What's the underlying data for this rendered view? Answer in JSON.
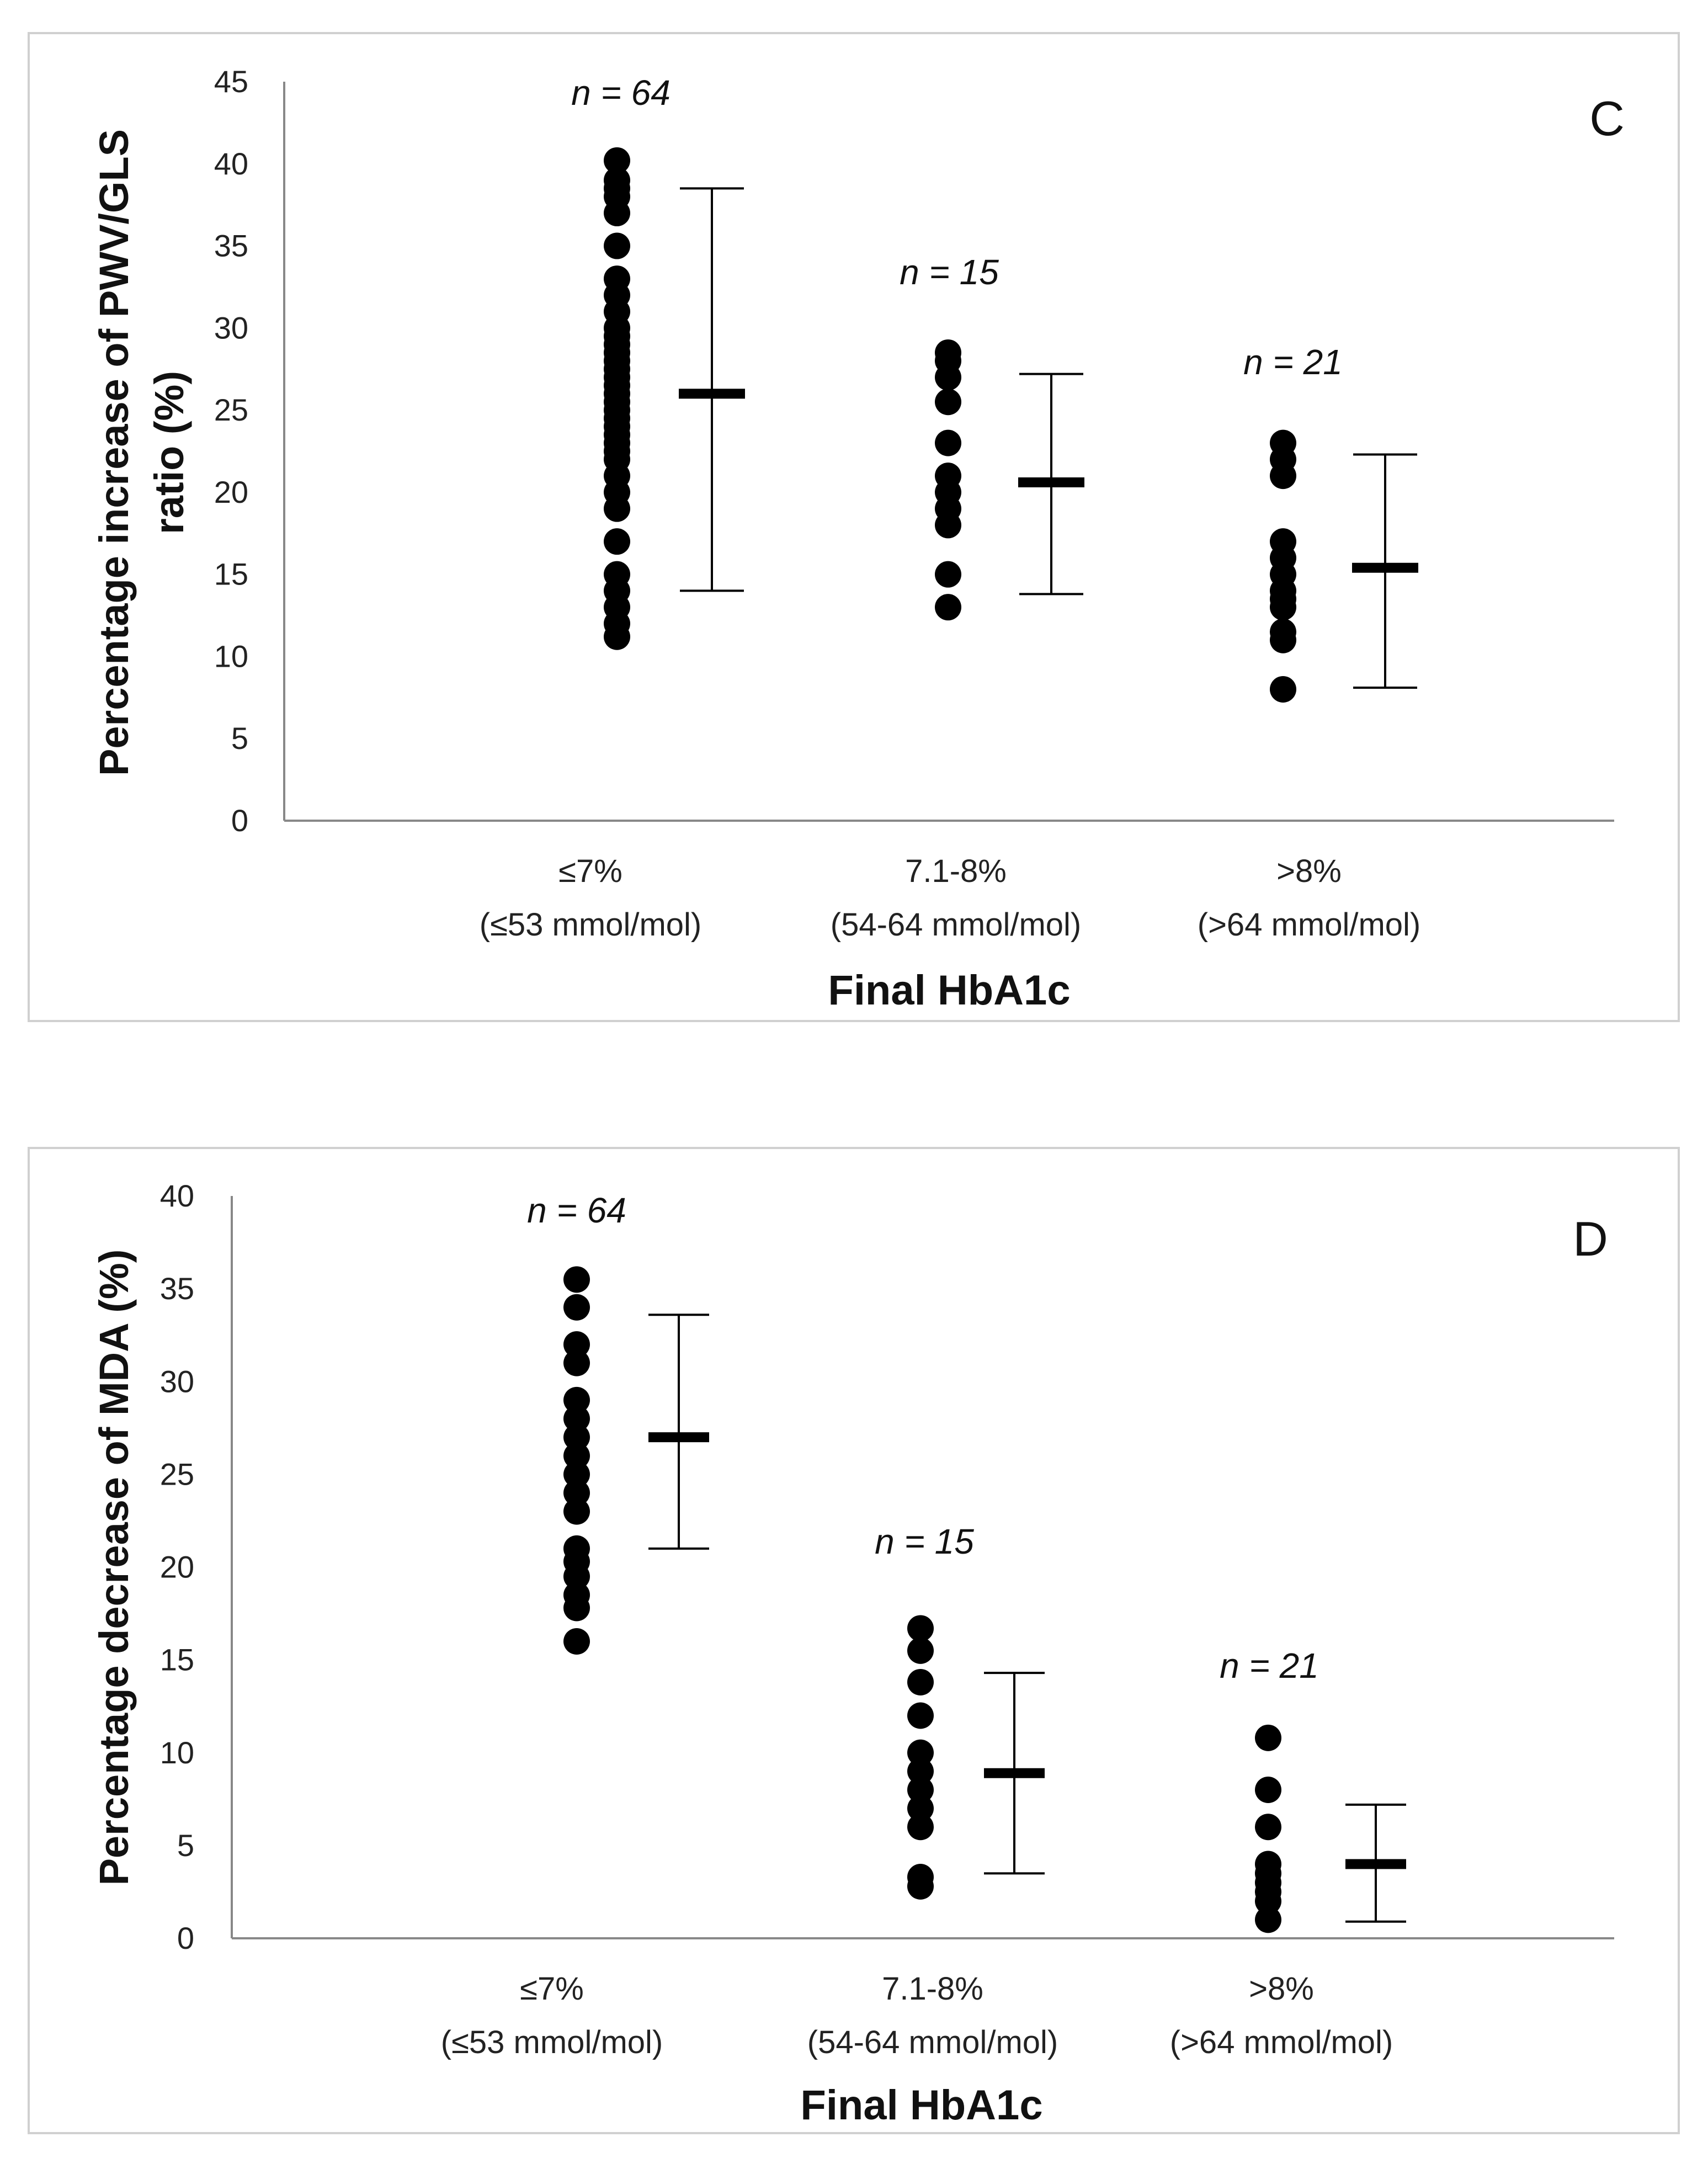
{
  "chart_data": [
    {
      "type": "scatter",
      "panel_label": "C",
      "ylabel_line1": "Percentage increase of PWV/GLS",
      "ylabel_line2": "ratio (%)",
      "xlabel": "Final HbA1c",
      "ylim": [
        0,
        45
      ],
      "yticks": [
        0,
        5,
        10,
        15,
        20,
        25,
        30,
        35,
        40,
        45
      ],
      "categories": [
        {
          "line1": "≤7%",
          "line2": "(≤53 mmol/mol)"
        },
        {
          "line1": "7.1-8%",
          "line2": "(54-64 mmol/mol)"
        },
        {
          "line1": ">8%",
          "line2": "(>64 mmol/mol)"
        }
      ],
      "groups": [
        {
          "n_label": "n = 64",
          "points": [
            11.2,
            12,
            13,
            14,
            15,
            17,
            19,
            20,
            21,
            22,
            22.5,
            23,
            23.5,
            24,
            24.5,
            25,
            25.5,
            26,
            26.5,
            27,
            27.5,
            28,
            28.5,
            29,
            29.5,
            30,
            31,
            32,
            33,
            35,
            37,
            38,
            38.5,
            39,
            40.2
          ],
          "mean": 26,
          "low": 14,
          "high": 38.5
        },
        {
          "n_label": "n = 15",
          "points": [
            13,
            15,
            18,
            19,
            20,
            21,
            23,
            25.5,
            27,
            28,
            28.5
          ],
          "mean": 20.6,
          "low": 13.8,
          "high": 27.2
        },
        {
          "n_label": "n = 21",
          "points": [
            8,
            11,
            11.5,
            13,
            13.5,
            14,
            15,
            16,
            17,
            21,
            22,
            23
          ],
          "mean": 15.4,
          "low": 8.1,
          "high": 22.3
        }
      ]
    },
    {
      "type": "scatter",
      "panel_label": "D",
      "ylabel_line1": "Percentage decrease of MDA (%)",
      "ylabel_line2": "",
      "xlabel": "Final HbA1c",
      "ylim": [
        0,
        40
      ],
      "yticks": [
        0,
        5,
        10,
        15,
        20,
        25,
        30,
        35,
        40
      ],
      "categories": [
        {
          "line1": "≤7%",
          "line2": "(≤53 mmol/mol)"
        },
        {
          "line1": "7.1-8%",
          "line2": "(54-64 mmol/mol)"
        },
        {
          "line1": ">8%",
          "line2": "(>64 mmol/mol)"
        }
      ],
      "groups": [
        {
          "n_label": "n = 64",
          "points": [
            16,
            17.8,
            18.5,
            19.5,
            20.3,
            21,
            23,
            24,
            25,
            26,
            27,
            28,
            29,
            31,
            32,
            34,
            35.5
          ],
          "mean": 27,
          "low": 21,
          "high": 33.6
        },
        {
          "n_label": "n = 15",
          "points": [
            2.8,
            3.3,
            6,
            7,
            8,
            9,
            10,
            12,
            13.8,
            15.5,
            16.7
          ],
          "mean": 8.9,
          "low": 3.5,
          "high": 14.3
        },
        {
          "n_label": "n = 21",
          "points": [
            1,
            2,
            2.5,
            3,
            3.5,
            4,
            6,
            8,
            10.8
          ],
          "mean": 4,
          "low": 0.9,
          "high": 7.2
        }
      ]
    }
  ]
}
